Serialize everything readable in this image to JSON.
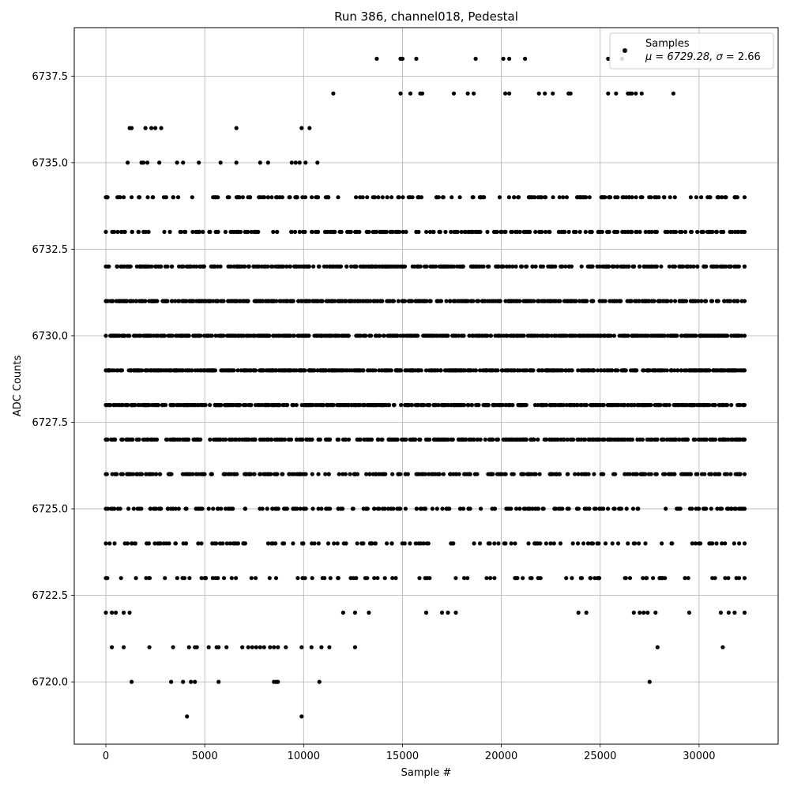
{
  "chart_data": {
    "type": "scatter",
    "title": "Run 386, channel018, Pedestal",
    "xlabel": "Sample #",
    "ylabel": "ADC Counts",
    "xlim": [
      -1600,
      34000
    ],
    "ylim": [
      6718.2,
      6738.9
    ],
    "x_ticks": [
      0,
      5000,
      10000,
      15000,
      20000,
      25000,
      30000
    ],
    "x_tick_labels": [
      "0",
      "5000",
      "10000",
      "15000",
      "20000",
      "25000",
      "30000"
    ],
    "y_ticks": [
      6720.0,
      6722.5,
      6725.0,
      6727.5,
      6730.0,
      6732.5,
      6735.0,
      6737.5
    ],
    "y_tick_labels": [
      "6720.0",
      "6722.5",
      "6725.0",
      "6727.5",
      "6730.0",
      "6732.5",
      "6735.0",
      "6737.5"
    ],
    "grid": true,
    "legend": {
      "placement": "top-right",
      "series_name": "Samples",
      "stats_prefix": "μ = 6729.28, ",
      "sigma_symbol": "σ",
      "stats_suffix": " = 2.66"
    },
    "series": [
      {
        "name": "Samples",
        "color": "#000000",
        "x_range": [
          0,
          32300
        ],
        "mean": 6729.28,
        "sigma": 2.66,
        "level_density": [
          {
            "y": 6738,
            "x": [
              13700,
              14900,
              15000,
              15700,
              18700,
              20100,
              20400,
              21200,
              25400,
              26100
            ]
          },
          {
            "y": 6737,
            "x": [
              11500,
              14900,
              15400,
              15900,
              16000,
              17600,
              18300,
              18600,
              20200,
              20400,
              21900,
              22200,
              22600,
              23400,
              23500,
              25400,
              25800,
              26400,
              26500,
              26600,
              26800,
              27100,
              28700
            ]
          },
          {
            "y": 6736,
            "x": [
              1200,
              1300,
              2000,
              2300,
              2500,
              2800,
              6600,
              9900,
              10300
            ]
          },
          {
            "y": 6735,
            "x": [
              1100,
              1800,
              1900,
              2100,
              2700,
              3600,
              3900,
              4700,
              5800,
              6600,
              7800,
              8200,
              9400,
              9600,
              9800,
              10100,
              10700
            ]
          },
          {
            "y": 6722,
            "x": [
              0,
              300,
              500,
              900,
              1200,
              12000,
              12600,
              13300,
              16200,
              17000,
              17300,
              17700,
              23900,
              24300,
              26700,
              27000,
              27200,
              27400,
              27800,
              29500,
              31100,
              31500,
              31800,
              32300
            ]
          },
          {
            "y": 6721,
            "x": [
              300,
              900,
              2200,
              3400,
              4200,
              4500,
              4600,
              5200,
              5600,
              5700,
              6100,
              6900,
              7200,
              7400,
              7600,
              7800,
              8000,
              8300,
              8500,
              8700,
              9100,
              9900,
              10400,
              10900,
              11300,
              12600,
              27900,
              31200
            ]
          },
          {
            "y": 6720,
            "x": [
              1300,
              3300,
              3900,
              4300,
              4500,
              5700,
              8500,
              8600,
              8700,
              10800,
              27500
            ]
          },
          {
            "y": 6719,
            "x": [
              4100,
              9900
            ]
          }
        ]
      }
    ]
  }
}
